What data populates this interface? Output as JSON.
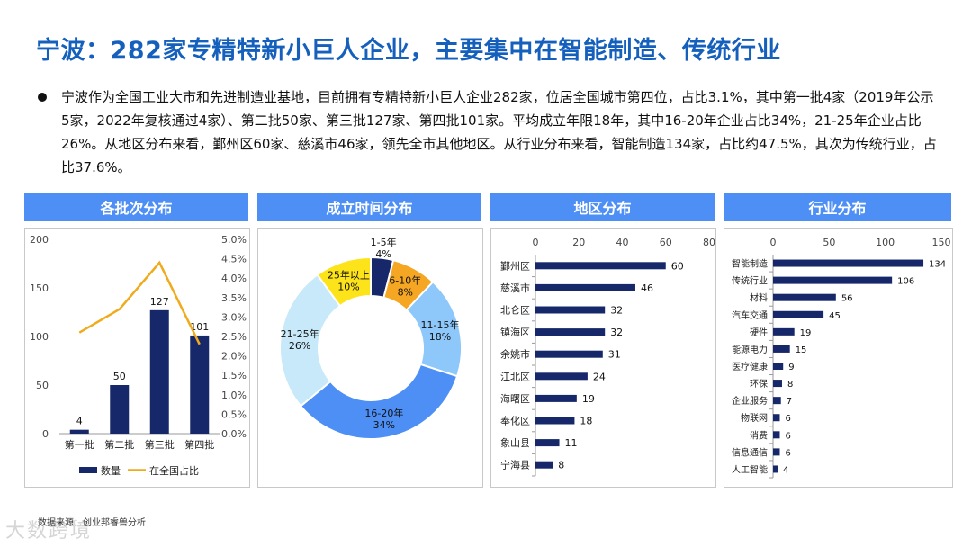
{
  "title": "宁波：282家专精特新小巨人企业，主要集中在智能制造、传统行业",
  "paragraph": "宁波作为全国工业大市和先进制造业基地，目前拥有专精特新小巨人企业282家，位居全国城市第四位，占比3.1%，其中第一批4家（2019年公示5家，2022年复核通过4家）、第二批50家、第三批127家、第四批101家。平均成立年限18年，其中16-20年企业占比34%，21-25年企业占比26%。从地区分布来看，鄞州区60家、慈溪市46家，领先全市其他地区。从行业分布来看，智能制造134家，占比约47.5%，其次为传统行业，占比37.6%。",
  "panels": {
    "batch": "各批次分布",
    "founding": "成立时间分布",
    "region": "地区分布",
    "industry": "行业分布"
  },
  "source": "数据来源：创业邦睿兽分析",
  "watermark": "大数跨境",
  "colors": {
    "title": "#1560bd",
    "header_bg": "#4d8ff5",
    "bar": "#16286a",
    "line": "#f0ab1d"
  },
  "chart_data": [
    {
      "type": "bar",
      "categories": [
        "第一批",
        "第二批",
        "第三批",
        "第四批"
      ],
      "series": [
        {
          "name": "数量",
          "values": [
            4,
            50,
            127,
            101
          ],
          "axis": "left",
          "type": "bar"
        },
        {
          "name": "在全国占比",
          "values": [
            2.6,
            3.2,
            4.4,
            2.3
          ],
          "axis": "right",
          "type": "line",
          "unit": "%"
        }
      ],
      "ylim": [
        0,
        200
      ],
      "yticks": [
        0,
        50,
        100,
        150,
        200
      ],
      "y2lim": [
        0,
        5
      ],
      "y2ticks": [
        "0.0%",
        "0.5%",
        "1.0%",
        "1.5%",
        "2.0%",
        "2.5%",
        "3.0%",
        "3.5%",
        "4.0%",
        "4.5%",
        "5.0%"
      ],
      "legend": "bottom"
    },
    {
      "type": "pie",
      "donut": true,
      "slices": [
        {
          "label": "1-5年",
          "value": 4,
          "pct": "4%",
          "color": "#16286a",
          "text_color": "#111111"
        },
        {
          "label": "6-10年",
          "value": 8,
          "pct": "8%",
          "color": "#f5a623",
          "text_color": "#111111"
        },
        {
          "label": "11-15年",
          "value": 18,
          "pct": "18%",
          "color": "#8ec8fb",
          "text_color": "#111111"
        },
        {
          "label": "16-20年",
          "value": 34,
          "pct": "34%",
          "color": "#4d8ff5",
          "text_color": "#111111"
        },
        {
          "label": "21-25年",
          "value": 26,
          "pct": "26%",
          "color": "#c8e9f9",
          "text_color": "#111111"
        },
        {
          "label": "25年以上",
          "value": 10,
          "pct": "10%",
          "color": "#fde31a",
          "text_color": "#111111"
        }
      ]
    },
    {
      "type": "bar",
      "orientation": "horizontal",
      "categories": [
        "鄞州区",
        "慈溪市",
        "北仑区",
        "镇海区",
        "余姚市",
        "江北区",
        "海曙区",
        "奉化区",
        "象山县",
        "宁海县"
      ],
      "values": [
        60,
        46,
        32,
        32,
        31,
        24,
        19,
        18,
        11,
        8
      ],
      "xlim": [
        0,
        80
      ],
      "xticks": [
        0,
        20,
        40,
        60,
        80
      ]
    },
    {
      "type": "bar",
      "orientation": "horizontal",
      "categories": [
        "智能制造",
        "传统行业",
        "材料",
        "汽车交通",
        "硬件",
        "能源电力",
        "医疗健康",
        "环保",
        "企业服务",
        "物联网",
        "消费",
        "信息通信",
        "人工智能"
      ],
      "values": [
        134,
        106,
        56,
        45,
        19,
        15,
        9,
        8,
        7,
        6,
        6,
        6,
        4
      ],
      "xlim": [
        0,
        150
      ],
      "xticks": [
        0,
        50,
        100,
        150
      ]
    }
  ]
}
